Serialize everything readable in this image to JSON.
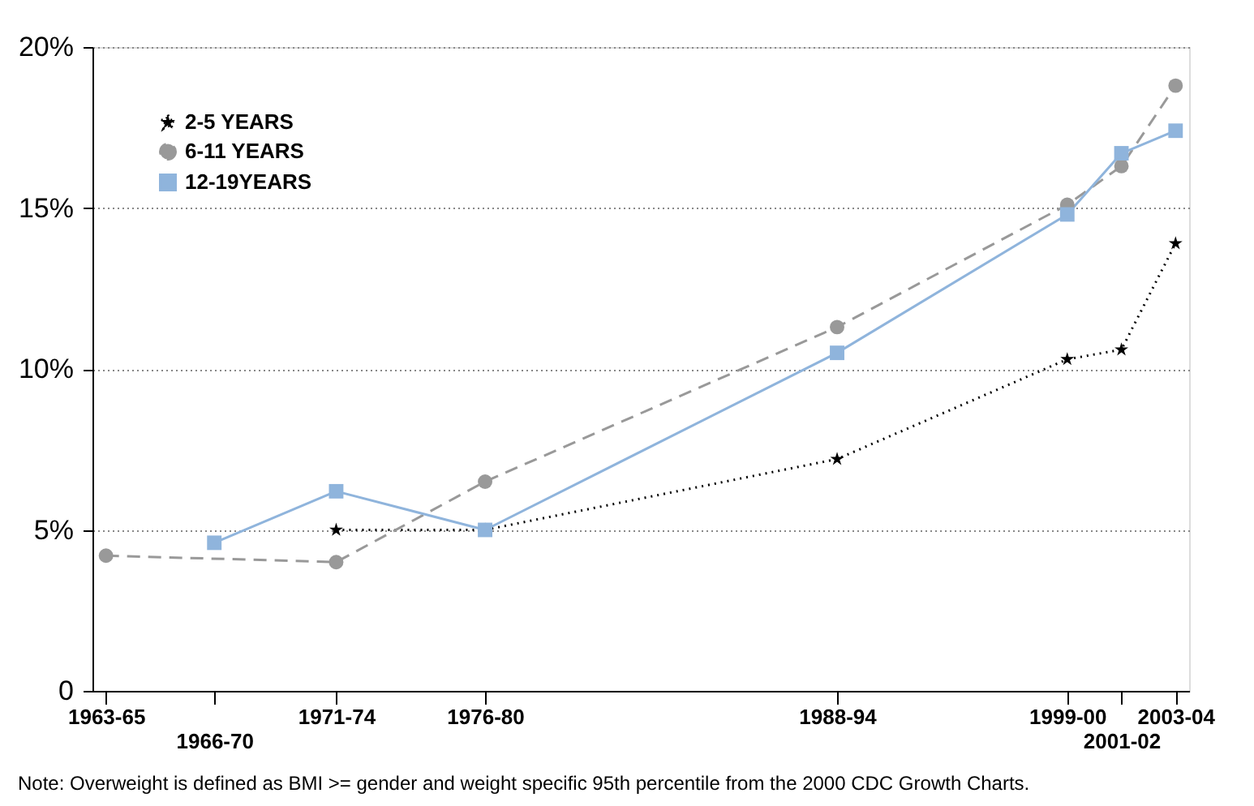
{
  "chart_data": {
    "type": "line",
    "categories": [
      "1963-65",
      null,
      null,
      null,
      null,
      null,
      null,
      null,
      "1966-70",
      null,
      null,
      null,
      null,
      null,
      null,
      null,
      null,
      "1971-74",
      null,
      null,
      null,
      null,
      null,
      null,
      null,
      null,
      null,
      null,
      "1976-80",
      null,
      null,
      null,
      null,
      null,
      null,
      null,
      null,
      null,
      null,
      null,
      null,
      null,
      null,
      null,
      null,
      null,
      null,
      null,
      null,
      null,
      null,
      null,
      null,
      null,
      "1988-94",
      null,
      null,
      null,
      null,
      null,
      null,
      null,
      null,
      null,
      null,
      null,
      null,
      null,
      null,
      null,
      null,
      "1999-00",
      null,
      null,
      null,
      "2001-02",
      null,
      null,
      null,
      "2003-04"
    ],
    "ylim": [
      0,
      20
    ],
    "yticks": [
      0,
      {
        "value": 5,
        "label": "5%"
      },
      {
        "value": 10,
        "label": "10%"
      },
      {
        "value": 15,
        "label": "15%"
      },
      {
        "value": 20,
        "label": "20%"
      }
    ],
    "grid": "y",
    "legend": "left",
    "series": [
      {
        "name": "2-5 YEARS",
        "color": "#000000",
        "marker": "star",
        "line_style": "dotted",
        "values": [
          null,
          null,
          null,
          null,
          null,
          null,
          null,
          null,
          null,
          null,
          null,
          null,
          null,
          null,
          null,
          null,
          null,
          5.0,
          null,
          null,
          null,
          null,
          null,
          null,
          null,
          null,
          null,
          null,
          5.0,
          null,
          null,
          null,
          null,
          null,
          null,
          null,
          null,
          null,
          null,
          null,
          null,
          null,
          null,
          null,
          null,
          null,
          null,
          null,
          null,
          null,
          null,
          null,
          null,
          null,
          7.2,
          null,
          null,
          null,
          null,
          null,
          null,
          null,
          null,
          null,
          null,
          null,
          null,
          null,
          null,
          null,
          null,
          10.3,
          null,
          null,
          null,
          10.6,
          null,
          null,
          null,
          13.9
        ]
      },
      {
        "name": "6-11 YEARS",
        "color": "#999999",
        "marker": "circle",
        "line_style": "dashed",
        "values": [
          4.2,
          null,
          null,
          null,
          null,
          null,
          null,
          null,
          null,
          null,
          null,
          null,
          null,
          null,
          null,
          null,
          null,
          4.0,
          null,
          null,
          null,
          null,
          null,
          null,
          null,
          null,
          null,
          null,
          6.5,
          null,
          null,
          null,
          null,
          null,
          null,
          null,
          null,
          null,
          null,
          null,
          null,
          null,
          null,
          null,
          null,
          null,
          null,
          null,
          null,
          null,
          null,
          null,
          null,
          null,
          11.3,
          null,
          null,
          null,
          null,
          null,
          null,
          null,
          null,
          null,
          null,
          null,
          null,
          null,
          null,
          null,
          null,
          15.1,
          null,
          null,
          null,
          16.3,
          null,
          null,
          null,
          18.8
        ]
      },
      {
        "name": "12-19YEARS",
        "color": "#8fb4dc",
        "marker": "square",
        "line_style": "solid",
        "values": [
          null,
          null,
          null,
          null,
          null,
          null,
          null,
          null,
          4.6,
          null,
          null,
          null,
          null,
          null,
          null,
          null,
          null,
          6.2,
          null,
          null,
          null,
          null,
          null,
          null,
          null,
          null,
          null,
          null,
          5.0,
          null,
          null,
          null,
          null,
          null,
          null,
          null,
          null,
          null,
          null,
          null,
          null,
          null,
          null,
          null,
          null,
          null,
          null,
          null,
          null,
          null,
          null,
          null,
          null,
          null,
          10.5,
          null,
          null,
          null,
          null,
          null,
          null,
          null,
          null,
          null,
          null,
          null,
          null,
          null,
          null,
          null,
          null,
          14.8,
          null,
          null,
          null,
          16.7,
          null,
          null,
          null,
          17.4
        ]
      }
    ],
    "annotations": [
      "Note: Overweight is defined as BMI >= gender and weight specific 95th percentile from the 2000 CDC Growth Charts."
    ]
  }
}
